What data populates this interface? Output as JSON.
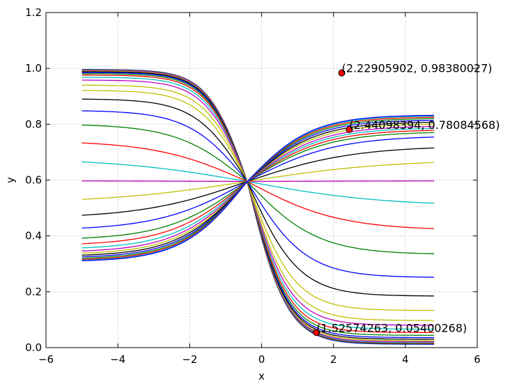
{
  "chart_data": {
    "type": "line",
    "title": "",
    "xlabel": "x",
    "ylabel": "y",
    "xlim": [
      -6,
      6
    ],
    "ylim": [
      0.0,
      1.2
    ],
    "grid": true,
    "legend": "none",
    "x_ticks": [
      "−6",
      "−4",
      "−2",
      "0",
      "2",
      "4",
      "6"
    ],
    "y_ticks": [
      "0.0",
      "0.2",
      "0.4",
      "0.6",
      "0.8",
      "1.0",
      "1.2"
    ],
    "x_tick_values": [
      -6,
      -4,
      -2,
      0,
      2,
      4,
      6
    ],
    "y_tick_values": [
      0.0,
      0.2,
      0.4,
      0.6,
      0.8,
      1.0,
      1.2
    ],
    "x_range": [
      -5.0,
      4.8
    ],
    "pivot": {
      "x": -0.4,
      "y": 0.595
    },
    "colors": [
      "#0000ff",
      "#008000",
      "#ff0000",
      "#00bfbf",
      "#bf00bf",
      "#bfbf00",
      "#000000"
    ],
    "family": {
      "description": "y = 0.595 + (a - 0.595)*(1 - s) + s-shaped family through pivot",
      "curves": [
        {
          "left": 0.996,
          "right": 0.012,
          "color": "#0000ff"
        },
        {
          "left": 0.995,
          "right": 0.014,
          "color": "#008000"
        },
        {
          "left": 0.994,
          "right": 0.016,
          "color": "#ff0000"
        },
        {
          "left": 0.993,
          "right": 0.018,
          "color": "#00bfbf"
        },
        {
          "left": 0.992,
          "right": 0.021,
          "color": "#bf00bf"
        },
        {
          "left": 0.99,
          "right": 0.025,
          "color": "#bfbf00"
        },
        {
          "left": 0.988,
          "right": 0.03,
          "color": "#000000"
        },
        {
          "left": 0.985,
          "right": 0.036,
          "color": "#0000ff"
        },
        {
          "left": 0.981,
          "right": 0.044,
          "color": "#008000"
        },
        {
          "left": 0.976,
          "right": 0.054,
          "color": "#ff0000"
        },
        {
          "left": 0.968,
          "right": 0.066,
          "color": "#00bfbf"
        },
        {
          "left": 0.958,
          "right": 0.08,
          "color": "#bf00bf"
        },
        {
          "left": 0.94,
          "right": 0.097,
          "color": "#bfbf00"
        },
        {
          "left": 0.921,
          "right": 0.133,
          "color": "#bfbf00"
        },
        {
          "left": 0.89,
          "right": 0.185,
          "color": "#000000"
        },
        {
          "left": 0.848,
          "right": 0.252,
          "color": "#0000ff"
        },
        {
          "left": 0.797,
          "right": 0.336,
          "color": "#008000"
        },
        {
          "left": 0.733,
          "right": 0.426,
          "color": "#ff0000"
        },
        {
          "left": 0.665,
          "right": 0.517,
          "color": "#00bfbf"
        },
        {
          "left": 0.597,
          "right": 0.597,
          "color": "#bf00bf"
        },
        {
          "left": 0.531,
          "right": 0.663,
          "color": "#bfbf00"
        },
        {
          "left": 0.474,
          "right": 0.715,
          "color": "#000000"
        },
        {
          "left": 0.428,
          "right": 0.754,
          "color": "#0000ff"
        },
        {
          "left": 0.392,
          "right": 0.77,
          "color": "#008000"
        },
        {
          "left": 0.372,
          "right": 0.778,
          "color": "#ff0000"
        },
        {
          "left": 0.357,
          "right": 0.785,
          "color": "#00bfbf"
        },
        {
          "left": 0.346,
          "right": 0.792,
          "color": "#bf00bf"
        },
        {
          "left": 0.338,
          "right": 0.8,
          "color": "#bfbf00"
        },
        {
          "left": 0.331,
          "right": 0.807,
          "color": "#000000"
        },
        {
          "left": 0.325,
          "right": 0.814,
          "color": "#0000ff"
        },
        {
          "left": 0.32,
          "right": 0.82,
          "color": "#008000"
        },
        {
          "left": 0.316,
          "right": 0.825,
          "color": "#ff0000"
        },
        {
          "left": 0.313,
          "right": 0.829,
          "color": "#00bfbf"
        },
        {
          "left": 0.311,
          "right": 0.832,
          "color": "#0000ff"
        }
      ]
    },
    "points": [
      {
        "x": 2.22905902,
        "y": 0.98380027,
        "label": "(2.22905902, 0.98380027)"
      },
      {
        "x": 2.44098394,
        "y": 0.78084568,
        "label": "(2.44098394, 0.78084568)"
      },
      {
        "x": 1.52574263,
        "y": 0.05400268,
        "label": "(1.52574263, 0.05400268)"
      }
    ],
    "point_color": "#ff0000"
  }
}
